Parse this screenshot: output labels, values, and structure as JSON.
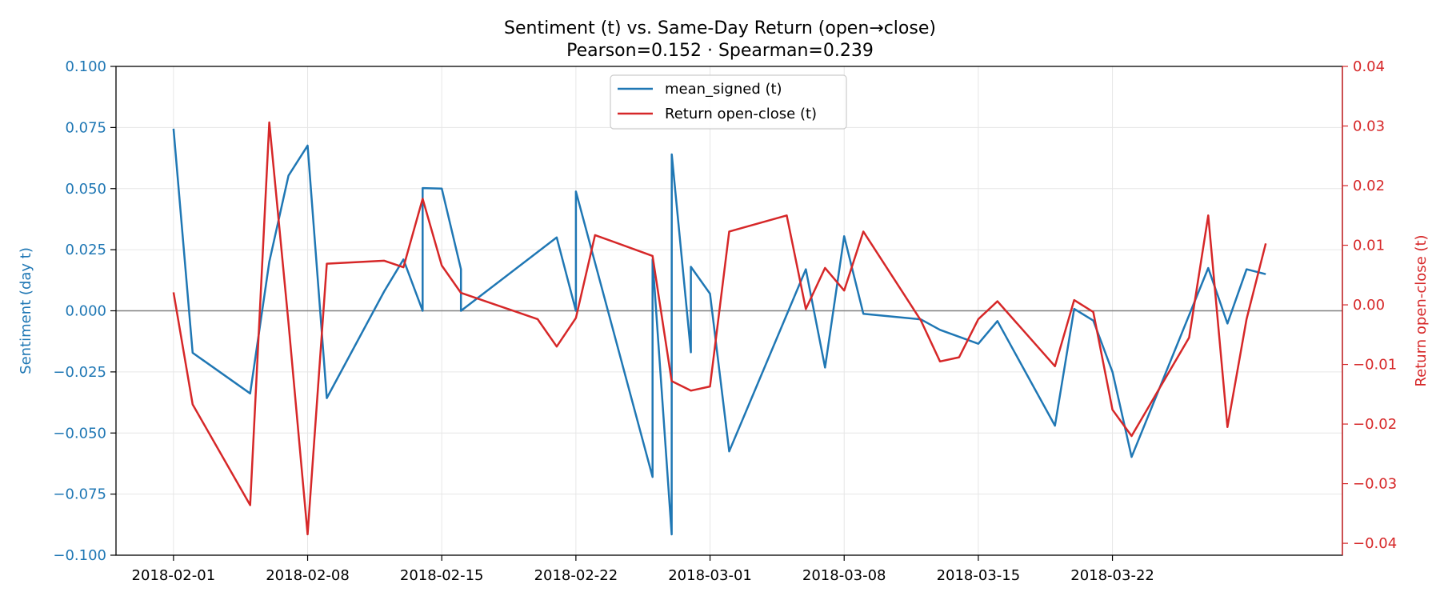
{
  "chart_data": {
    "type": "line",
    "title": "Sentiment (t) vs. Same-Day Return (open→close)",
    "subtitle": "Pearson=0.152 · Spearman=0.239",
    "xlabel": "",
    "ylabel_left": "Sentiment (day t)",
    "ylabel_right": "Return open-close (t)",
    "x_domain": [
      "2018-01-29T00:00",
      "2018-04-03T00:00"
    ],
    "ylim_left": [
      -0.1,
      0.1
    ],
    "ylim_right": [
      -0.042,
      0.04
    ],
    "x_ticks": [
      "2018-02-01",
      "2018-02-08",
      "2018-02-15",
      "2018-02-22",
      "2018-03-01",
      "2018-03-08",
      "2018-03-15",
      "2018-03-22"
    ],
    "y_ticks_left": [
      "0.100",
      "0.075",
      "0.050",
      "0.025",
      "0.000",
      "−0.025",
      "−0.050",
      "−0.075",
      "−0.100"
    ],
    "y_ticks_right": [
      "0.04",
      "0.03",
      "0.02",
      "0.01",
      "0.00",
      "−0.01",
      "−0.02",
      "−0.03",
      "−0.04"
    ],
    "grid": true,
    "zero_line": true,
    "legend_position": "top-center",
    "colors": {
      "sentiment": "#1f77b4",
      "return": "#d62728",
      "zero": "#808080",
      "grid": "#e6e6e6"
    },
    "series": [
      {
        "name": "mean_signed (t)",
        "axis": "left",
        "points": [
          [
            "2018-02-01T00:00",
            0.0745
          ],
          [
            "2018-02-02T00:00",
            -0.0172
          ],
          [
            "2018-02-05T00:00",
            -0.0338
          ],
          [
            "2018-02-06T00:00",
            0.02
          ],
          [
            "2018-02-07T00:00",
            0.0553
          ],
          [
            "2018-02-08T00:00",
            0.0676
          ],
          [
            "2018-02-09T00:00",
            -0.0357
          ],
          [
            "2018-02-12T00:00",
            0.008
          ],
          [
            "2018-02-13T00:00",
            0.021
          ],
          [
            "2018-02-14T00:00",
            0.0
          ],
          [
            "2018-02-14T00:01",
            0.0502
          ],
          [
            "2018-02-15T00:00",
            0.05
          ],
          [
            "2018-02-16T00:00",
            0.017
          ],
          [
            "2018-02-16T00:01",
            0.0
          ],
          [
            "2018-02-21T00:00",
            0.03
          ],
          [
            "2018-02-22T00:00",
            0.0
          ],
          [
            "2018-02-22T00:01",
            0.0488
          ],
          [
            "2018-02-26T00:00",
            -0.068
          ],
          [
            "2018-02-26T00:01",
            0.021
          ],
          [
            "2018-02-27T00:00",
            -0.0915
          ],
          [
            "2018-02-27T00:01",
            0.064
          ],
          [
            "2018-02-28T00:00",
            -0.017
          ],
          [
            "2018-02-28T00:01",
            0.018
          ],
          [
            "2018-03-01T00:00",
            0.007
          ],
          [
            "2018-03-02T00:00",
            -0.0575
          ],
          [
            "2018-03-06T00:00",
            0.017
          ],
          [
            "2018-03-07T00:00",
            -0.0232
          ],
          [
            "2018-03-08T00:00",
            0.0305
          ],
          [
            "2018-03-09T00:00",
            -0.0012
          ],
          [
            "2018-03-12T00:00",
            -0.0035
          ],
          [
            "2018-03-13T00:00",
            -0.0078
          ],
          [
            "2018-03-15T00:00",
            -0.0135
          ],
          [
            "2018-03-16T00:00",
            -0.0042
          ],
          [
            "2018-03-19T00:00",
            -0.047
          ],
          [
            "2018-03-20T00:00",
            0.0008
          ],
          [
            "2018-03-21T00:00",
            -0.004
          ],
          [
            "2018-03-22T00:00",
            -0.025
          ],
          [
            "2018-03-23T00:00",
            -0.0598
          ],
          [
            "2018-03-27T00:00",
            0.0175
          ],
          [
            "2018-03-28T00:00",
            -0.0052
          ],
          [
            "2018-03-29T00:00",
            0.017
          ],
          [
            "2018-03-30T00:00",
            0.015
          ]
        ]
      },
      {
        "name": "Return open-close (t)",
        "axis": "right",
        "points": [
          [
            "2018-02-01T00:00",
            0.0021
          ],
          [
            "2018-02-02T00:00",
            -0.0167
          ],
          [
            "2018-02-05T00:00",
            -0.0336
          ],
          [
            "2018-02-06T00:00",
            0.0306
          ],
          [
            "2018-02-07T00:00",
            -0.003
          ],
          [
            "2018-02-08T00:00",
            -0.0385
          ],
          [
            "2018-02-09T00:00",
            0.0069
          ],
          [
            "2018-02-12T00:00",
            0.0074
          ],
          [
            "2018-02-13T00:00",
            0.0063
          ],
          [
            "2018-02-14T00:00",
            0.0178
          ],
          [
            "2018-02-15T00:00",
            0.0066
          ],
          [
            "2018-02-16T00:00",
            0.002
          ],
          [
            "2018-02-20T00:00",
            -0.0024
          ],
          [
            "2018-02-21T00:00",
            -0.007
          ],
          [
            "2018-02-22T00:00",
            -0.0022
          ],
          [
            "2018-02-23T00:00",
            0.0117
          ],
          [
            "2018-02-26T00:00",
            0.0082
          ],
          [
            "2018-02-27T00:00",
            -0.0128
          ],
          [
            "2018-02-28T00:00",
            -0.0144
          ],
          [
            "2018-03-01T00:00",
            -0.0137
          ],
          [
            "2018-03-02T00:00",
            0.0123
          ],
          [
            "2018-03-05T00:00",
            0.015
          ],
          [
            "2018-03-06T00:00",
            -0.0007
          ],
          [
            "2018-03-07T00:00",
            0.0062
          ],
          [
            "2018-03-08T00:00",
            0.0024
          ],
          [
            "2018-03-09T00:00",
            0.0123
          ],
          [
            "2018-03-12T00:00",
            -0.0026
          ],
          [
            "2018-03-13T00:00",
            -0.0095
          ],
          [
            "2018-03-14T00:00",
            -0.0088
          ],
          [
            "2018-03-15T00:00",
            -0.0024
          ],
          [
            "2018-03-16T00:00",
            0.0006
          ],
          [
            "2018-03-19T00:00",
            -0.0103
          ],
          [
            "2018-03-20T00:00",
            0.0008
          ],
          [
            "2018-03-21T00:00",
            -0.0012
          ],
          [
            "2018-03-22T00:00",
            -0.0176
          ],
          [
            "2018-03-23T00:00",
            -0.022
          ],
          [
            "2018-03-26T00:00",
            -0.0055
          ],
          [
            "2018-03-27T00:00",
            0.015
          ],
          [
            "2018-03-28T00:00",
            -0.0205
          ],
          [
            "2018-03-29T00:00",
            -0.0024
          ],
          [
            "2018-03-30T00:00",
            0.0103
          ]
        ]
      }
    ]
  }
}
